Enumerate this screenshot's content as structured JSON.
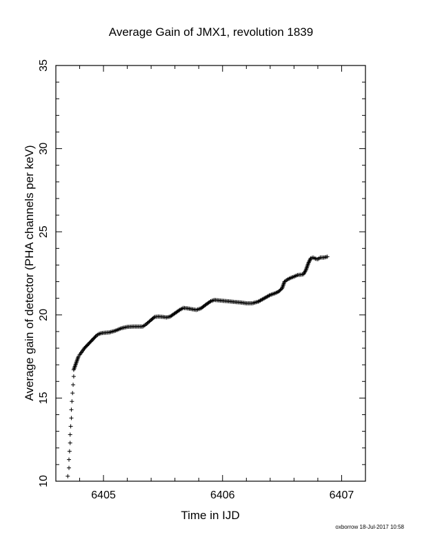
{
  "chart_data": {
    "type": "scatter",
    "title": "Average Gain of JMX1, revolution 1839",
    "xlabel": "Time in IJD",
    "ylabel": "Average gain of detector (PHA channels per keV)",
    "xlim": [
      6404.6,
      6407.2
    ],
    "ylim": [
      10,
      35
    ],
    "x_ticks": [
      6405,
      6406,
      6407
    ],
    "x_tick_labels": [
      "6405",
      "6406",
      "6407"
    ],
    "y_ticks": [
      10,
      15,
      20,
      25,
      30,
      35
    ],
    "y_tick_labels": [
      "10",
      "15",
      "20",
      "25",
      "30",
      "35"
    ],
    "marker": "+",
    "grid": false,
    "series": [
      {
        "color": "#000000",
        "points": [
          [
            6404.7,
            10.3
          ],
          [
            6404.71,
            10.8
          ],
          [
            6404.71,
            11.3
          ],
          [
            6404.715,
            11.8
          ],
          [
            6404.72,
            12.3
          ],
          [
            6404.72,
            12.8
          ],
          [
            6404.725,
            13.3
          ],
          [
            6404.73,
            13.8
          ],
          [
            6404.73,
            14.3
          ],
          [
            6404.735,
            14.8
          ],
          [
            6404.74,
            15.3
          ],
          [
            6404.745,
            15.8
          ],
          [
            6404.75,
            16.3
          ],
          [
            6404.75,
            16.7
          ],
          [
            6404.76,
            16.9
          ],
          [
            6404.77,
            17.1
          ],
          [
            6404.78,
            17.3
          ],
          [
            6404.79,
            17.5
          ],
          [
            6404.8,
            17.6
          ],
          [
            6404.82,
            17.8
          ],
          [
            6404.84,
            18.0
          ],
          [
            6404.86,
            18.15
          ],
          [
            6404.88,
            18.3
          ],
          [
            6404.9,
            18.45
          ],
          [
            6404.92,
            18.6
          ],
          [
            6404.94,
            18.75
          ],
          [
            6404.96,
            18.85
          ],
          [
            6404.98,
            18.9
          ],
          [
            6405.0,
            18.92
          ],
          [
            6405.05,
            18.95
          ],
          [
            6405.1,
            19.05
          ],
          [
            6405.15,
            19.2
          ],
          [
            6405.2,
            19.28
          ],
          [
            6405.25,
            19.3
          ],
          [
            6405.3,
            19.3
          ],
          [
            6405.33,
            19.3
          ],
          [
            6405.36,
            19.45
          ],
          [
            6405.4,
            19.7
          ],
          [
            6405.43,
            19.88
          ],
          [
            6405.46,
            19.9
          ],
          [
            6405.5,
            19.88
          ],
          [
            6405.53,
            19.85
          ],
          [
            6405.56,
            19.9
          ],
          [
            6405.6,
            20.1
          ],
          [
            6405.64,
            20.3
          ],
          [
            6405.67,
            20.42
          ],
          [
            6405.7,
            20.4
          ],
          [
            6405.74,
            20.35
          ],
          [
            6405.78,
            20.3
          ],
          [
            6405.82,
            20.4
          ],
          [
            6405.86,
            20.62
          ],
          [
            6405.9,
            20.82
          ],
          [
            6405.93,
            20.9
          ],
          [
            6405.96,
            20.88
          ],
          [
            6406.0,
            20.85
          ],
          [
            6406.05,
            20.82
          ],
          [
            6406.1,
            20.78
          ],
          [
            6406.15,
            20.75
          ],
          [
            6406.2,
            20.7
          ],
          [
            6406.25,
            20.7
          ],
          [
            6406.3,
            20.8
          ],
          [
            6406.35,
            21.0
          ],
          [
            6406.4,
            21.2
          ],
          [
            6406.44,
            21.3
          ],
          [
            6406.47,
            21.4
          ],
          [
            6406.5,
            21.6
          ],
          [
            6406.52,
            22.0
          ],
          [
            6406.55,
            22.15
          ],
          [
            6406.58,
            22.25
          ],
          [
            6406.6,
            22.3
          ],
          [
            6406.63,
            22.4
          ],
          [
            6406.66,
            22.42
          ],
          [
            6406.68,
            22.45
          ],
          [
            6406.7,
            22.7
          ],
          [
            6406.72,
            23.1
          ],
          [
            6406.74,
            23.4
          ],
          [
            6406.76,
            23.45
          ],
          [
            6406.78,
            23.38
          ],
          [
            6406.8,
            23.35
          ],
          [
            6406.82,
            23.45
          ],
          [
            6406.85,
            23.45
          ],
          [
            6406.88,
            23.5
          ]
        ]
      }
    ]
  },
  "footer": {
    "credit": "oxborrow 18-Jul-2017 10:58"
  }
}
